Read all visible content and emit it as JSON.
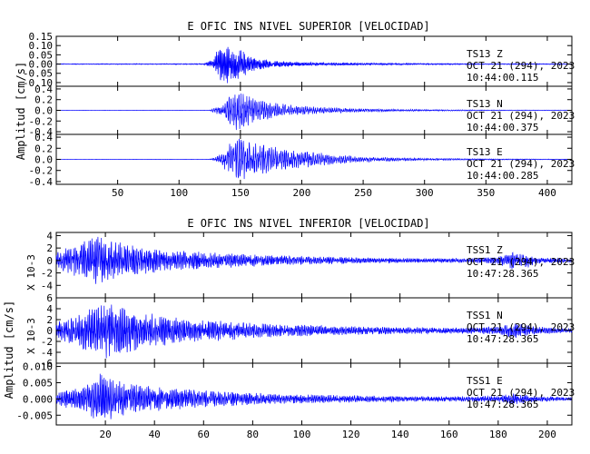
{
  "chart_data": [
    {
      "type": "line",
      "title": "E OFIC INS NIVEL SUPERIOR [VELOCIDAD]",
      "ylabel": "Amplitud [cm/s]",
      "xlim": [
        0,
        420
      ],
      "xticks": [
        "50",
        "100",
        "150",
        "200",
        "250",
        "300",
        "350",
        "400"
      ],
      "x_tick_values": [
        50,
        100,
        150,
        200,
        250,
        300,
        350,
        400
      ],
      "color": "#0000ff",
      "traces": [
        {
          "station": "TS13",
          "component": "Z",
          "date": "OCT 21 (294), 2023",
          "time": "10:44:00.115",
          "ylim": [
            -0.12,
            0.15
          ],
          "yticks": [
            "0.15",
            "0.10",
            "0.05",
            "0.00",
            "-0.05",
            "-0.10"
          ],
          "y_tick_values": [
            0.15,
            0.1,
            0.05,
            0.0,
            -0.05,
            -0.1
          ],
          "envelope": [
            [
              0,
              0.002
            ],
            [
              120,
              0.003
            ],
            [
              128,
              0.03
            ],
            [
              132,
              0.09
            ],
            [
              140,
              0.11
            ],
            [
              150,
              0.08
            ],
            [
              160,
              0.04
            ],
            [
              175,
              0.02
            ],
            [
              200,
              0.01
            ],
            [
              250,
              0.006
            ],
            [
              300,
              0.004
            ],
            [
              350,
              0.003
            ],
            [
              420,
              0.002
            ]
          ],
          "freq": 1.1,
          "seed": 3
        },
        {
          "station": "TS13",
          "component": "N",
          "date": "OCT 21 (294), 2023",
          "time": "10:44:00.375",
          "ylim": [
            -0.45,
            0.45
          ],
          "yticks": [
            "0.4",
            "0.2",
            "0.0",
            "-0.2",
            "-0.4"
          ],
          "y_tick_values": [
            0.4,
            0.2,
            0.0,
            -0.2,
            -0.4
          ],
          "envelope": [
            [
              0,
              0.002
            ],
            [
              125,
              0.003
            ],
            [
              132,
              0.08
            ],
            [
              140,
              0.25
            ],
            [
              148,
              0.42
            ],
            [
              155,
              0.3
            ],
            [
              165,
              0.2
            ],
            [
              180,
              0.14
            ],
            [
              195,
              0.1
            ],
            [
              210,
              0.07
            ],
            [
              250,
              0.03
            ],
            [
              300,
              0.015
            ],
            [
              350,
              0.008
            ],
            [
              420,
              0.004
            ]
          ],
          "freq": 0.7,
          "seed": 7
        },
        {
          "station": "TS13",
          "component": "E",
          "date": "OCT 21 (294), 2023",
          "time": "10:44:00.285",
          "ylim": [
            -0.45,
            0.45
          ],
          "yticks": [
            "0.4",
            "0.2",
            "0.0",
            "-0.2",
            "-0.4"
          ],
          "y_tick_values": [
            0.4,
            0.2,
            0.0,
            -0.2,
            -0.4
          ],
          "envelope": [
            [
              0,
              0.002
            ],
            [
              125,
              0.003
            ],
            [
              133,
              0.08
            ],
            [
              142,
              0.3
            ],
            [
              150,
              0.42
            ],
            [
              158,
              0.33
            ],
            [
              168,
              0.28
            ],
            [
              180,
              0.22
            ],
            [
              195,
              0.18
            ],
            [
              210,
              0.14
            ],
            [
              225,
              0.09
            ],
            [
              260,
              0.04
            ],
            [
              300,
              0.02
            ],
            [
              350,
              0.01
            ],
            [
              420,
              0.004
            ]
          ],
          "freq": 0.7,
          "seed": 11
        }
      ]
    },
    {
      "type": "line",
      "title": "E OFIC INS NIVEL INFERIOR [VELOCIDAD]",
      "ylabel": "Amplitud [cm/s]",
      "scale_label": "X 10-3",
      "xlim": [
        0,
        210
      ],
      "xticks": [
        "20",
        "40",
        "60",
        "80",
        "100",
        "120",
        "140",
        "160",
        "180",
        "200"
      ],
      "x_tick_values": [
        20,
        40,
        60,
        80,
        100,
        120,
        140,
        160,
        180,
        200
      ],
      "color": "#0000ff",
      "traces": [
        {
          "station": "TSS1",
          "component": "Z",
          "date": "OCT 21 (294), 2023",
          "time": "10:47:28.365",
          "ylim": [
            -6,
            4.5
          ],
          "yticks": [
            "4",
            "2",
            "0",
            "-2",
            "-4"
          ],
          "y_tick_values": [
            4,
            2,
            0,
            -2,
            -4
          ],
          "envelope": [
            [
              0,
              1.2
            ],
            [
              6,
              2.5
            ],
            [
              12,
              3.5
            ],
            [
              18,
              4
            ],
            [
              24,
              3.2
            ],
            [
              35,
              2.2
            ],
            [
              50,
              1.6
            ],
            [
              70,
              1.2
            ],
            [
              90,
              0.8
            ],
            [
              120,
              0.5
            ],
            [
              150,
              0.35
            ],
            [
              170,
              0.4
            ],
            [
              180,
              0.6
            ],
            [
              185,
              1.6
            ],
            [
              188,
              1.1
            ],
            [
              192,
              1.2
            ],
            [
              196,
              0.5
            ],
            [
              210,
              0.3
            ]
          ],
          "freq": 0.9,
          "seed": 21
        },
        {
          "station": "TSS1",
          "component": "N",
          "date": "OCT 21 (294), 2023",
          "time": "10:47:28.365",
          "ylim": [
            -6,
            6
          ],
          "yticks": [
            "6",
            "4",
            "2",
            "0",
            "-2",
            "-4",
            "-6"
          ],
          "y_tick_values": [
            6,
            4,
            2,
            0,
            -2,
            -4,
            -6
          ],
          "envelope": [
            [
              0,
              1.5
            ],
            [
              8,
              3
            ],
            [
              15,
              4.5
            ],
            [
              22,
              5.5
            ],
            [
              30,
              4
            ],
            [
              40,
              3
            ],
            [
              55,
              2.2
            ],
            [
              70,
              1.8
            ],
            [
              90,
              1.2
            ],
            [
              120,
              0.8
            ],
            [
              150,
              0.6
            ],
            [
              170,
              0.6
            ],
            [
              180,
              0.8
            ],
            [
              186,
              1.5
            ],
            [
              190,
              1.2
            ],
            [
              196,
              0.7
            ],
            [
              210,
              0.4
            ]
          ],
          "freq": 0.9,
          "seed": 33
        },
        {
          "station": "TSS1",
          "component": "E",
          "date": "OCT 21 (294), 2023",
          "time": "10:47:28.365",
          "ylim": [
            -0.008,
            0.011
          ],
          "yticks": [
            "0.010",
            "0.005",
            "0.000",
            "-0.005"
          ],
          "y_tick_values": [
            0.01,
            0.005,
            0.0,
            -0.005
          ],
          "envelope": [
            [
              0,
              0.002
            ],
            [
              10,
              0.004
            ],
            [
              18,
              0.008
            ],
            [
              24,
              0.006
            ],
            [
              35,
              0.0045
            ],
            [
              50,
              0.0032
            ],
            [
              70,
              0.0022
            ],
            [
              90,
              0.0016
            ],
            [
              120,
              0.0011
            ],
            [
              150,
              0.0008
            ],
            [
              170,
              0.0008
            ],
            [
              180,
              0.001
            ],
            [
              186,
              0.0018
            ],
            [
              190,
              0.0014
            ],
            [
              196,
              0.0009
            ],
            [
              210,
              0.0005
            ]
          ],
          "freq": 0.9,
          "seed": 45
        }
      ]
    }
  ]
}
